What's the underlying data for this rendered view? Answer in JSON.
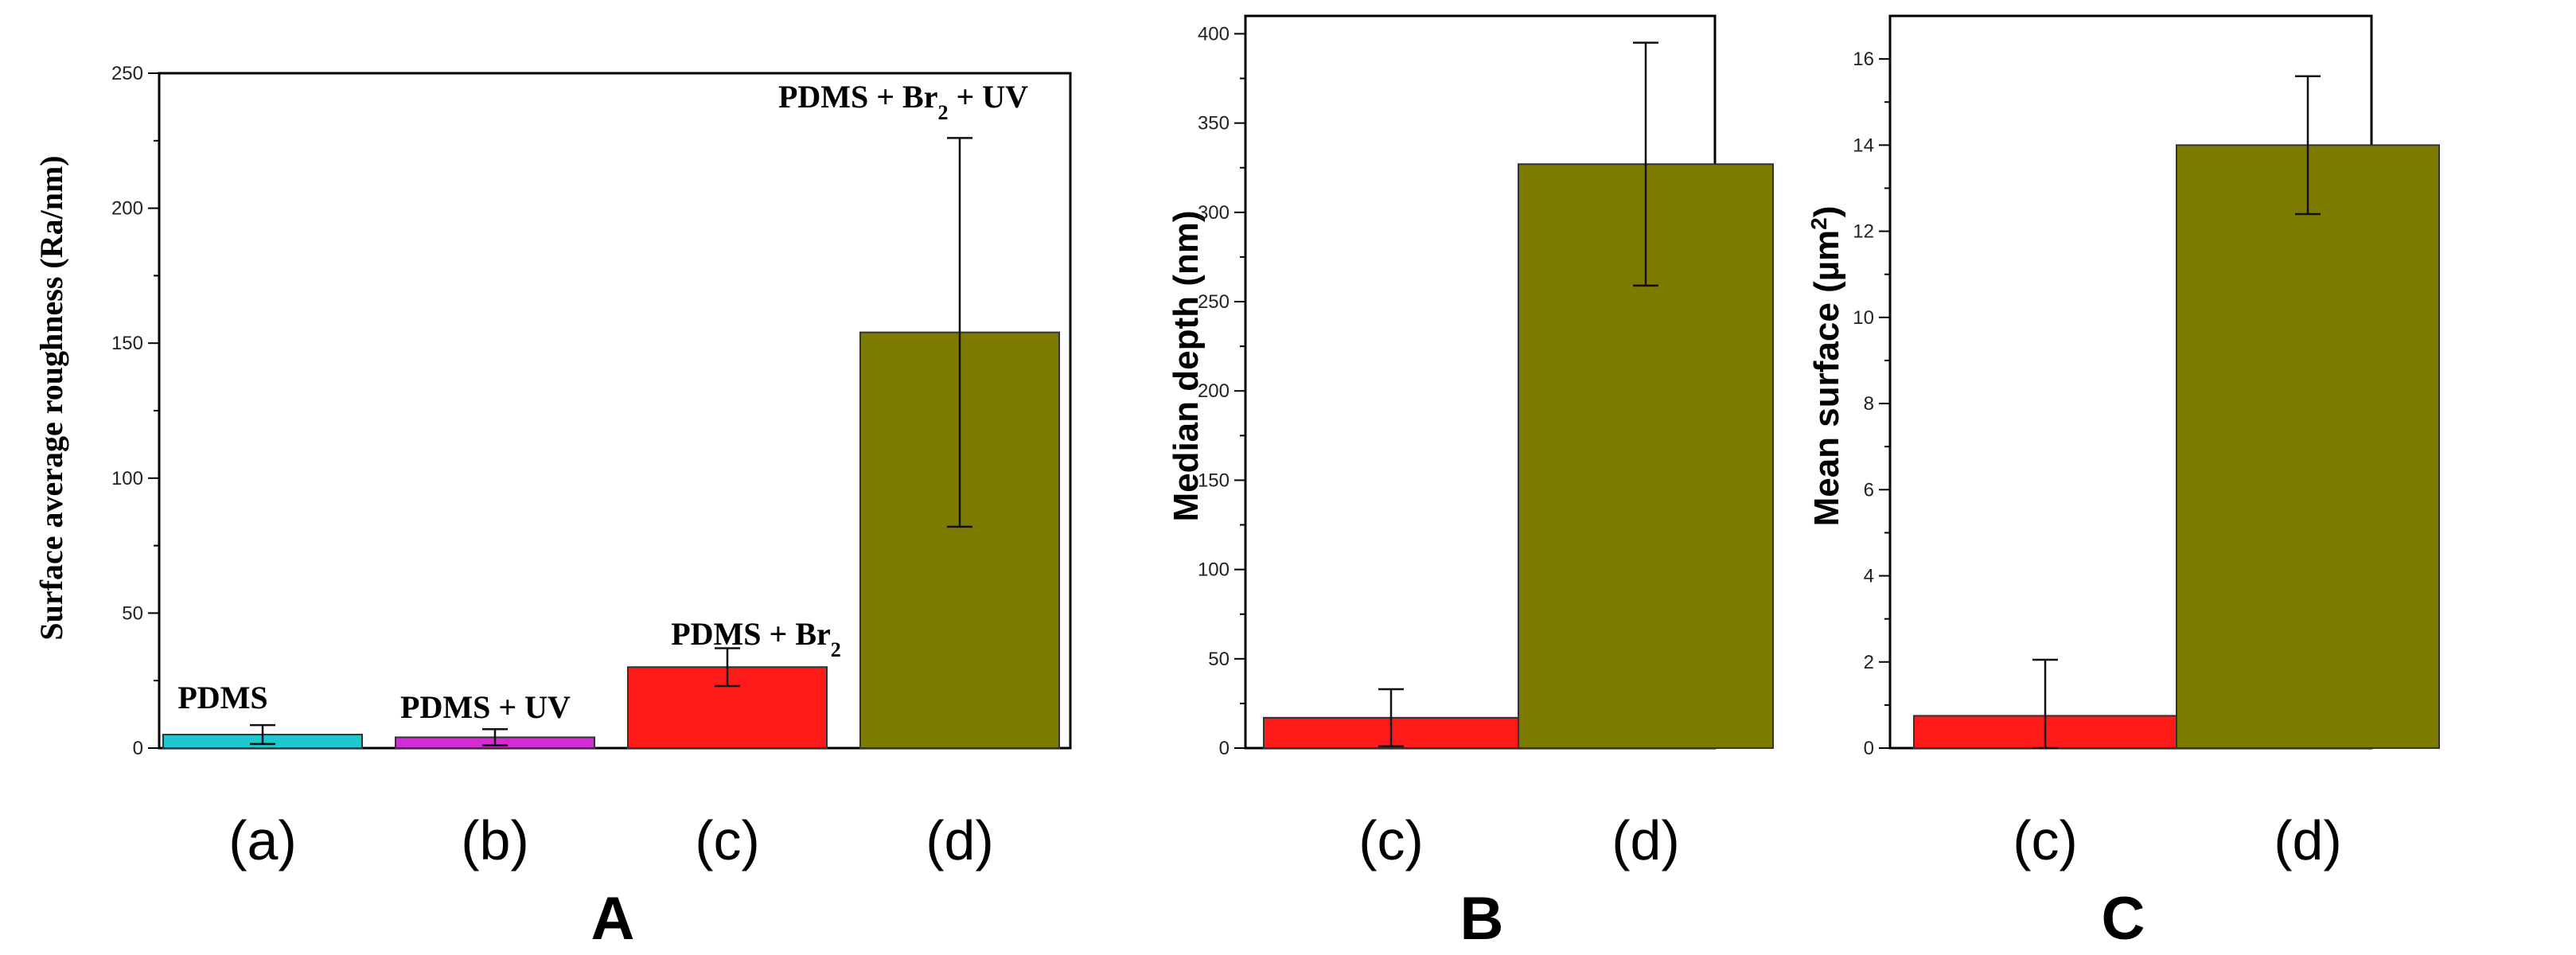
{
  "colors": {
    "cyan": "#1ec8cf",
    "magenta": "#d42cd4",
    "red": "#ff1a1a",
    "olive": "#7d7a00",
    "axis": "#000000"
  },
  "chart_data": [
    {
      "type": "bar",
      "panel": "A",
      "ylabel": "Surface average roughness (Ra/nm)",
      "ylim": [
        0,
        250
      ],
      "yticks": [
        0,
        50,
        100,
        150,
        200,
        250
      ],
      "categories": [
        "(a)",
        "(b)",
        "(c)",
        "(d)"
      ],
      "values": [
        5,
        4,
        30,
        154
      ],
      "errors": [
        3.5,
        3,
        7,
        72
      ],
      "bar_colors": [
        "cyan",
        "magenta",
        "red",
        "olive"
      ],
      "annotations": [
        {
          "base": "PDMS",
          "sub": "",
          "rest": ""
        },
        {
          "base": "PDMS + UV",
          "sub": "",
          "rest": ""
        },
        {
          "base": "PDMS + Br",
          "sub": "2",
          "rest": ""
        },
        {
          "base": "PDMS + Br",
          "sub": "2",
          "rest": " + UV"
        }
      ]
    },
    {
      "type": "bar",
      "panel": "B",
      "ylabel": "Median depth (nm)",
      "ylim": [
        0,
        410
      ],
      "yticks": [
        0,
        50,
        100,
        150,
        200,
        250,
        300,
        350,
        400
      ],
      "categories": [
        "(c)",
        "(d)"
      ],
      "values": [
        17,
        327
      ],
      "errors": [
        16,
        68
      ],
      "bar_colors": [
        "red",
        "olive"
      ]
    },
    {
      "type": "bar",
      "panel": "C",
      "ylabel_base": "Mean surface  (µm",
      "ylabel_sup": "2",
      "ylabel_end": ")",
      "ylim": [
        0,
        17
      ],
      "yticks": [
        0,
        2,
        4,
        6,
        8,
        10,
        12,
        14,
        16
      ],
      "categories": [
        "(c)",
        "(d)"
      ],
      "values": [
        0.75,
        14.0
      ],
      "errors": [
        1.3,
        1.6
      ],
      "bar_colors": [
        "red",
        "olive"
      ]
    }
  ]
}
